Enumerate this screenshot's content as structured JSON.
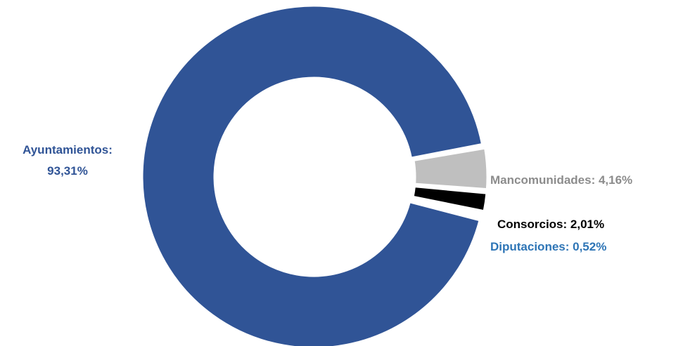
{
  "chart_data": {
    "type": "pie",
    "variant": "donut",
    "title": "",
    "slices": [
      {
        "name": "Ayuntamientos",
        "value": 93.31,
        "label_line1": "Ayuntamientos:",
        "label_line2": "93,31%",
        "color": "#305496"
      },
      {
        "name": "Mancomunidades",
        "value": 4.16,
        "label_line1": "Mancomunidades: 4,16%",
        "label_line2": "",
        "color": "#bfbfbf"
      },
      {
        "name": "Consorcios",
        "value": 2.01,
        "label_line1": "Consorcios: 2,01%",
        "label_line2": "",
        "color": "#000000"
      },
      {
        "name": "Diputaciones",
        "value": 0.52,
        "label_line1": "Diputaciones: 0,52%",
        "label_line2": "",
        "color": "#2e75b6"
      }
    ],
    "label_colors": {
      "Ayuntamientos": "#305496",
      "Mancomunidades": "#8c8c8c",
      "Consorcios": "#000000",
      "Diputaciones": "#2e75b6"
    },
    "legend": "none"
  }
}
